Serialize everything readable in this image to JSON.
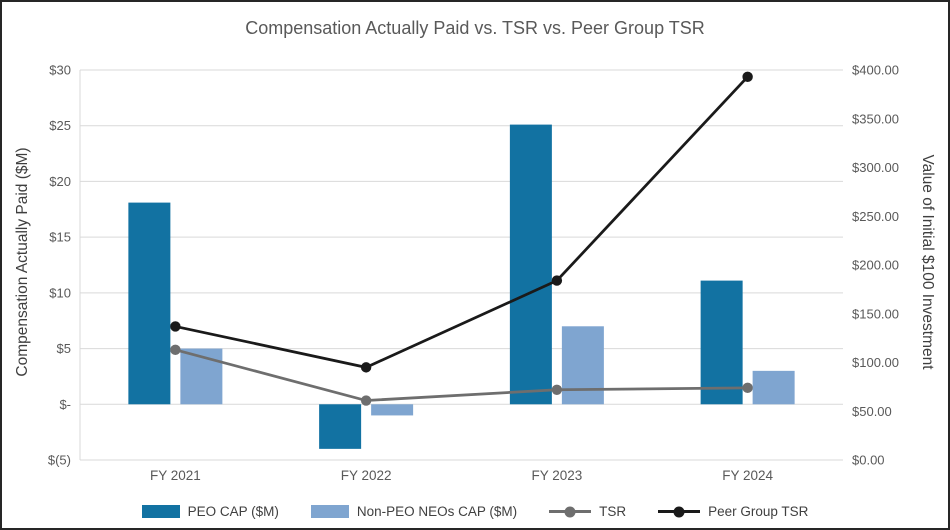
{
  "chart_data": {
    "type": "combo",
    "title": "Compensation Actually Paid vs. TSR vs. Peer Group TSR",
    "categories": [
      "FY 2021",
      "FY 2022",
      "FY 2023",
      "FY 2024"
    ],
    "series": [
      {
        "name": "PEO CAP ($M)",
        "type": "bar",
        "axis": "left",
        "color": "#1272A2",
        "values": [
          18.1,
          -4.0,
          25.1,
          11.1
        ]
      },
      {
        "name": "Non-PEO NEOs CAP ($M)",
        "type": "bar",
        "axis": "left",
        "color": "#7FA5D0",
        "values": [
          5.0,
          -1.0,
          7.0,
          3.0
        ]
      },
      {
        "name": "TSR",
        "type": "line",
        "axis": "right",
        "color": "#6E6E6E",
        "values": [
          113,
          61,
          72,
          74
        ]
      },
      {
        "name": "Peer Group TSR",
        "type": "line",
        "axis": "right",
        "color": "#1A1A1A",
        "values": [
          137,
          95,
          184,
          393
        ]
      }
    ],
    "left_axis": {
      "label": "Compensation Actually Paid ($M)",
      "min": -5,
      "max": 30,
      "ticks": [
        {
          "value": 30,
          "label": "$30"
        },
        {
          "value": 25,
          "label": "$25"
        },
        {
          "value": 20,
          "label": "$20"
        },
        {
          "value": 15,
          "label": "$15"
        },
        {
          "value": 10,
          "label": "$10"
        },
        {
          "value": 5,
          "label": "$5"
        },
        {
          "value": 0,
          "label": "$-"
        },
        {
          "value": -5,
          "label": "$(5)"
        }
      ]
    },
    "right_axis": {
      "label": "Value of Initial $100 Investment",
      "min": 0,
      "max": 400,
      "ticks": [
        {
          "value": 400,
          "label": "$400.00"
        },
        {
          "value": 350,
          "label": "$350.00"
        },
        {
          "value": 300,
          "label": "$300.00"
        },
        {
          "value": 250,
          "label": "$250.00"
        },
        {
          "value": 200,
          "label": "$200.00"
        },
        {
          "value": 150,
          "label": "$150.00"
        },
        {
          "value": 100,
          "label": "$100.00"
        },
        {
          "value": 50,
          "label": "$50.00"
        },
        {
          "value": 0,
          "label": "$0.00"
        }
      ]
    },
    "grid": true,
    "legend_position": "bottom"
  }
}
